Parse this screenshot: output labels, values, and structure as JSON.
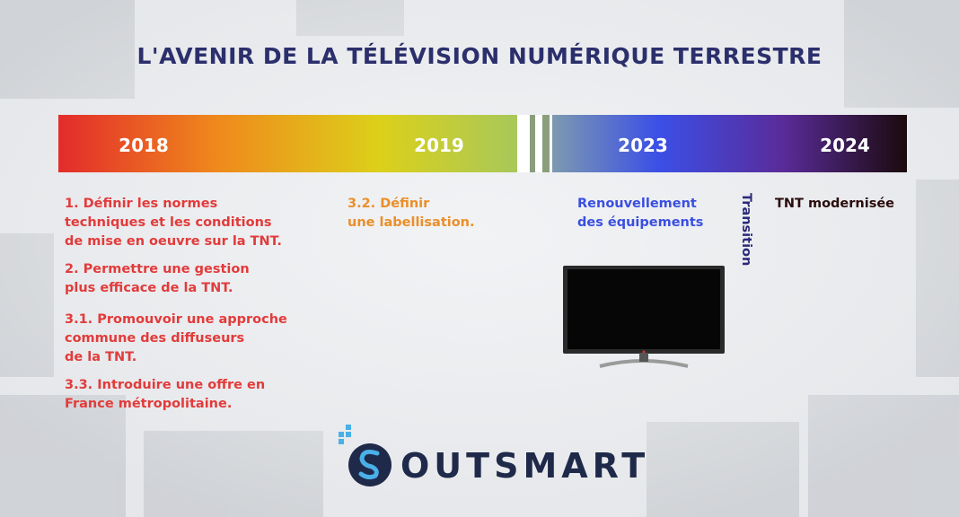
{
  "title": "L'AVENIR DE LA TÉLÉVISION NUMÉRIQUE TERRESTRE",
  "timeline": {
    "years": [
      "2018",
      "2019",
      "2023",
      "2024"
    ]
  },
  "col_2018": [
    [
      "1. Définir les normes",
      "techniques et les conditions",
      "de mise en oeuvre sur la TNT."
    ],
    [
      "2. Permettre une gestion",
      "plus efficace de la TNT."
    ],
    [
      "3.1. Promouvoir une approche",
      "commune des diffuseurs",
      "de la TNT."
    ],
    [
      "3.3. Introduire une offre en",
      "France métropolitaine."
    ]
  ],
  "col_2019": [
    "3.2. Définir",
    "une labellisation."
  ],
  "col_2023": [
    "Renouvellement",
    "des équipements"
  ],
  "transition": "Transition",
  "col_2024": "TNT modernisée",
  "logo": "OUTSMART"
}
